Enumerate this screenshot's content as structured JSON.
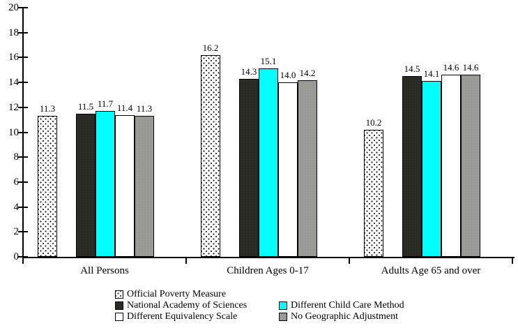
{
  "chart_data": {
    "type": "bar",
    "title": "",
    "categories": [
      "All Persons",
      "Children Ages 0-17",
      "Adults Age 65 and over"
    ],
    "series": [
      {
        "name": "Official Poverty Measure",
        "values": [
          11.3,
          16.2,
          10.2
        ],
        "labels": [
          "11.3",
          "16.2",
          "10.2"
        ],
        "pattern": "dotted",
        "color": "#ffffff"
      },
      {
        "name": "National Academy of Sciences",
        "values": [
          11.5,
          14.3,
          14.5
        ],
        "labels": [
          "11.5",
          "14.3",
          "14.5"
        ],
        "pattern": "solid",
        "color": "#2a2a25"
      },
      {
        "name": "Different Child Care Method",
        "values": [
          11.7,
          15.1,
          14.1
        ],
        "labels": [
          "11.7",
          "15.1",
          "14.1"
        ],
        "pattern": "solid",
        "color": "#00ffff"
      },
      {
        "name": "Different Equivalency Scale",
        "values": [
          11.4,
          14.0,
          14.6
        ],
        "labels": [
          "11.4",
          "14.0",
          "14.6"
        ],
        "pattern": "solid",
        "color": "#ffffff"
      },
      {
        "name": "No Geographic Adjustment",
        "values": [
          11.3,
          14.2,
          14.6
        ],
        "labels": [
          "11.3",
          "14.2",
          "14.6"
        ],
        "pattern": "solid",
        "color": "#999999"
      }
    ],
    "ylim": [
      0,
      20
    ],
    "ytick_labels": [
      "0",
      "2",
      "4",
      "6",
      "8",
      "10",
      "12",
      "14",
      "16",
      "18",
      "20"
    ],
    "grid": false,
    "legend_position": "bottom-left",
    "xlabel": "",
    "ylabel": ""
  },
  "colors": {
    "axis": "#000000",
    "background": "#ffffff",
    "cyan_series": "#00ffff",
    "dark_series": "#2a2a25",
    "gray_series": "#999999"
  }
}
